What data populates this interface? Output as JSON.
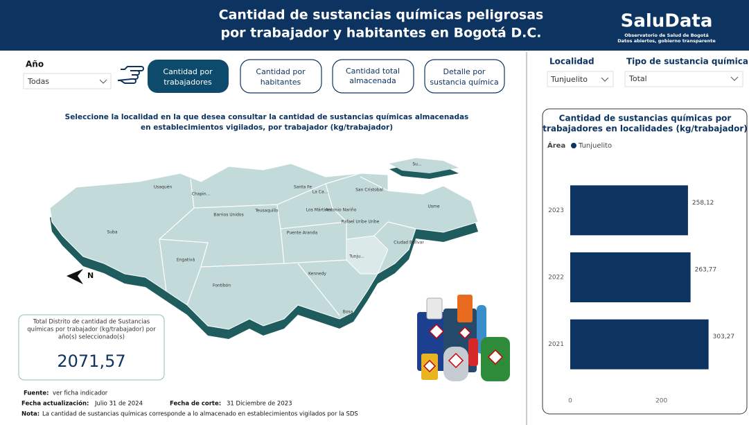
{
  "header": {
    "title_lines": [
      "Cantidad de sustancias químicas peligrosas",
      "por trabajador y habitantes en Bogotá D.C."
    ],
    "logo": {
      "name": "SaluData",
      "subtitle_lines": [
        "Observatorio de Salud de Bogotá",
        "Datos abiertos, gobierno transparente"
      ]
    }
  },
  "filters": {
    "year": {
      "label": "Año",
      "value": "Todas"
    },
    "locality": {
      "label": "Localidad",
      "value": "Tunjuelito"
    },
    "substance": {
      "label": "Tipo de sustancia química",
      "value": "Total"
    }
  },
  "buttons": [
    {
      "label_lines": [
        "Cantidad por",
        "trabajadores"
      ]
    },
    {
      "label_lines": [
        "Cantidad por",
        "habitantes"
      ]
    },
    {
      "label_lines": [
        "Cantidad total",
        "almacenada"
      ]
    },
    {
      "label_lines": [
        "Detalle por",
        "sustancia química"
      ]
    }
  ],
  "map": {
    "instruction_lines": [
      "Seleccione la localidad en la que desea consultar la cantidad de sustancias químicas almacenadas",
      "en establecimientos vigilados, por  trabajador  (kg/trabajador)"
    ],
    "compass": "N",
    "localities": [
      "Usaquén",
      "Chapin...",
      "Suba",
      "Barrios Unidos",
      "Teusaquillo",
      "Santa Fe",
      "La Ca...",
      "San Cristobal",
      "Los Mártires",
      "Antonio Nariño",
      "Rafael Uribe Uribe",
      "Puente Aranda",
      "Usme",
      "Ciudad Bolívar",
      "Tunju...",
      "Engativá",
      "Fontibón",
      "Kennedy",
      "Bosa",
      "Su..."
    ]
  },
  "kpi": {
    "label_lines": [
      "Total Distrito de cantidad de Sustancias",
      "químicas por trabajador (kg/trabajador) por",
      "año(s) seleccionado(s)"
    ],
    "value": "2071,57"
  },
  "footer": {
    "source": {
      "label": "Fuente:",
      "text": "ver ficha indicador"
    },
    "updated": {
      "label": "Fecha actualización:",
      "text": "Julio 31 de 2024"
    },
    "cutoff": {
      "label": "Fecha de corte:",
      "text": "31 Diciembre de 2023"
    },
    "note": {
      "label": "Nota:",
      "text": "La cantidad de sustancias químicas corresponde a lo almacenado en establecimientos vigilados por la SDS"
    }
  },
  "chart_data": {
    "type": "hbar",
    "title_lines": [
      "Cantidad de sustancias químicas por",
      "trabajadores en localidades (kg/trabajador)"
    ],
    "legend_title": "Área",
    "categories": [
      "2023",
      "2022",
      "2021"
    ],
    "series": [
      {
        "name": "Tunjuelito",
        "color": "#0d3461",
        "values": [
          258.12,
          263.77,
          303.27
        ],
        "value_labels": [
          "258,12",
          "263,77",
          "303,27"
        ]
      }
    ],
    "xlim": [
      0,
      360
    ],
    "xticks": [
      0,
      200
    ]
  }
}
